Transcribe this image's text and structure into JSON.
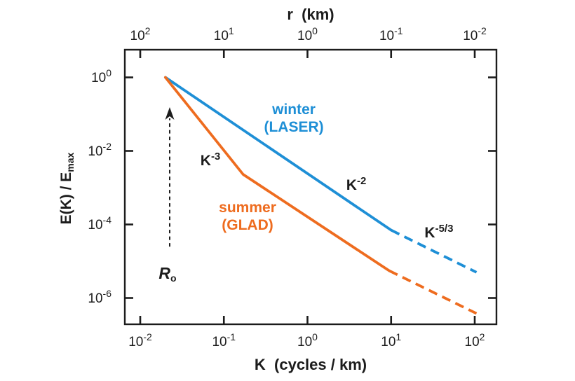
{
  "colors": {
    "axis": "#1c1c1c",
    "text": "#1c1c1c",
    "winter": "#1e8fd6",
    "summer": "#ee6c1f"
  },
  "chart_data": {
    "type": "line",
    "title": "",
    "top_axis": {
      "label": "r  (km)",
      "scale": "log",
      "tick_exponents": [
        2,
        1,
        0,
        -1,
        -2
      ],
      "relation": "r = 1/K"
    },
    "x_axis": {
      "label": "K  (cycles / km)",
      "scale": "log",
      "tick_exponents": [
        -2,
        -1,
        0,
        1,
        2
      ],
      "range_exponents": [
        -2.18,
        2.26
      ]
    },
    "y_axis": {
      "label_main": "E(K) / E",
      "label_sub": "max",
      "scale": "log",
      "tick_exponents": [
        0,
        -2,
        -4,
        -6
      ],
      "range_exponents": [
        0.75,
        -6.71
      ]
    },
    "grid": false,
    "legend_position": "inline-annotations",
    "series": [
      {
        "id": "winter",
        "name": "winter (LASER)",
        "color": "#1e8fd6",
        "segments": [
          {
            "style": "solid",
            "points": [
              [
                0.02,
                1.0
              ],
              [
                10,
                7e-05
              ]
            ]
          },
          {
            "style": "dashed",
            "points": [
              [
                10,
                7e-05
              ],
              [
                105,
                5e-06
              ]
            ]
          }
        ]
      },
      {
        "id": "summer",
        "name": "summer (GLAD)",
        "color": "#ee6c1f",
        "segments": [
          {
            "style": "solid",
            "points": [
              [
                0.02,
                1.0
              ],
              [
                0.17,
                0.0023
              ],
              [
                9.5,
                5.5e-06
              ]
            ]
          },
          {
            "style": "dashed",
            "points": [
              [
                9.5,
                5.5e-06
              ],
              [
                105,
                3.8e-07
              ]
            ]
          }
        ]
      }
    ],
    "series_labels": [
      {
        "id": "winter-label",
        "lines": [
          "winter",
          "(LASER)"
        ],
        "color": "#1e8fd6",
        "k": 0.687,
        "e": 0.136
      },
      {
        "id": "summer-label",
        "lines": [
          "summer",
          "(GLAD)"
        ],
        "color": "#ee6c1f",
        "k": 0.192,
        "e": 0.000293
      }
    ],
    "slope_annotations": [
      {
        "id": "k-minus-3",
        "base": "K",
        "exponent": "-3",
        "k": 0.069,
        "e": 0.0058
      },
      {
        "id": "k-minus-2",
        "base": "K",
        "exponent": "-2",
        "k": 3.83,
        "e": 0.00124
      },
      {
        "id": "k-minus-5-3",
        "base": "K",
        "exponent": "-5/3",
        "k": 37.3,
        "e": 6.3e-05
      }
    ],
    "rossby_marker": {
      "label_base": "R",
      "label_sub": "o",
      "k": 0.0212,
      "e": 4.7e-06,
      "arrow": {
        "k": 0.0225,
        "e_from": 2.5e-05,
        "e_to": 0.155
      }
    }
  }
}
